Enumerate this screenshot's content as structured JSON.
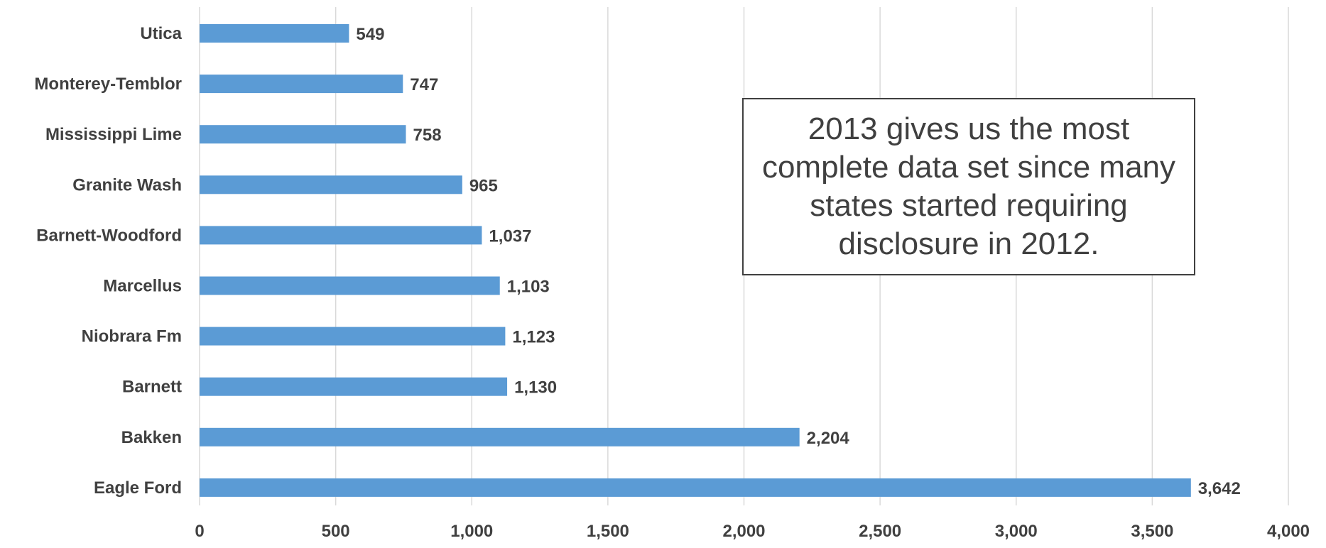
{
  "chart_data": {
    "type": "bar",
    "orientation": "horizontal",
    "categories": [
      "Utica",
      "Monterey-Temblor",
      "Mississippi Lime",
      "Granite Wash",
      "Barnett-Woodford",
      "Marcellus",
      "Niobrara Fm",
      "Barnett",
      "Bakken",
      "Eagle Ford"
    ],
    "values": [
      549,
      747,
      758,
      965,
      1037,
      1103,
      1123,
      1130,
      2204,
      3642
    ],
    "value_labels": [
      "549",
      "747",
      "758",
      "965",
      "1,037",
      "1,103",
      "1,123",
      "1,130",
      "2,204",
      "3,642"
    ],
    "x_ticks": [
      "0",
      "500",
      "1,000",
      "1,500",
      "2,000",
      "2,500",
      "3,000",
      "3,500",
      "4,000"
    ],
    "xlim": [
      0,
      4000
    ],
    "title": "",
    "xlabel": "",
    "ylabel": "",
    "grid": "vertical",
    "legend": "none",
    "bar_color": "#5b9bd5",
    "annotation": "2013 gives us the most complete data set since many states started requiring disclosure in 2012."
  }
}
